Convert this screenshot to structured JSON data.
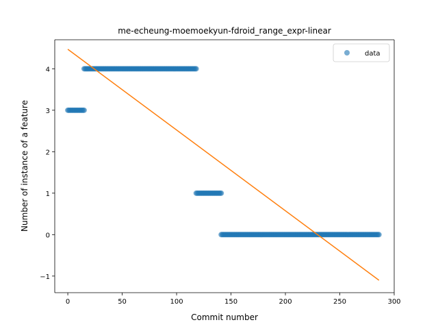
{
  "chart_data": {
    "type": "scatter",
    "title": "me-echeung-moemoekyun-fdroid_range_expr-linear",
    "xlabel": "Commit number",
    "ylabel": "Number of instance of a feature",
    "xlim": [
      -12,
      300
    ],
    "ylim": [
      -1.4,
      4.7
    ],
    "xticks": [
      0,
      50,
      100,
      150,
      200,
      250,
      300
    ],
    "yticks": [
      -1,
      0,
      1,
      2,
      3,
      4
    ],
    "xtick_labels": [
      "0",
      "50",
      "100",
      "150",
      "200",
      "250",
      "300"
    ],
    "ytick_labels": [
      "−1",
      "0",
      "1",
      "2",
      "3",
      "4"
    ],
    "grid": false,
    "legend_position": "top-right",
    "series": [
      {
        "name": "data",
        "kind": "scatter",
        "color": "#1f77b4",
        "segments": [
          {
            "x_start": 0,
            "x_end": 15,
            "y": 3
          },
          {
            "x_start": 15,
            "x_end": 118,
            "y": 4
          },
          {
            "x_start": 118,
            "x_end": 141,
            "y": 1
          },
          {
            "x_start": 141,
            "x_end": 286,
            "y": 0
          }
        ]
      },
      {
        "name": "",
        "kind": "line",
        "color": "#ff7f0e",
        "x": [
          0,
          286
        ],
        "y": [
          4.47,
          -1.1
        ]
      }
    ]
  }
}
